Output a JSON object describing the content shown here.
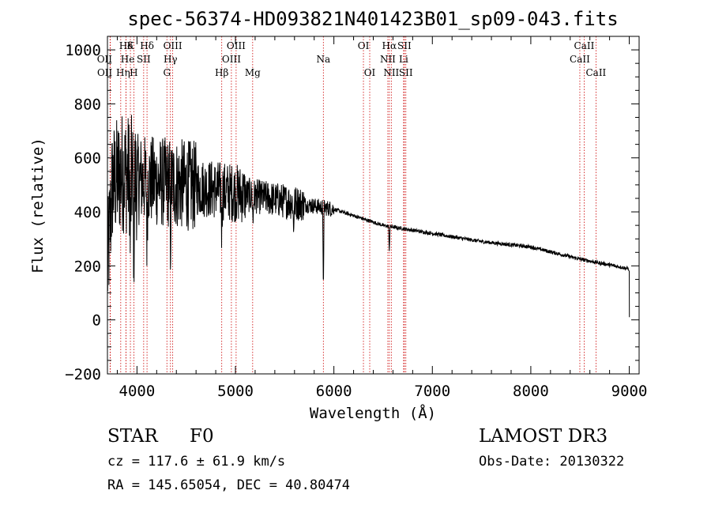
{
  "chart_data": {
    "type": "line",
    "title": "spec-56374-HD093821N401423B01_sp09-043.fits",
    "xlabel": "Wavelength (Å)",
    "ylabel": "Flux (relative)",
    "xlim": [
      3700,
      9100
    ],
    "ylim": [
      -200,
      1050
    ],
    "xticks": [
      4000,
      5000,
      6000,
      7000,
      8000,
      9000
    ],
    "yticks": [
      -200,
      0,
      200,
      400,
      600,
      800,
      1000
    ],
    "xtick_labels": [
      "4000",
      "5000",
      "6000",
      "7000",
      "8000",
      "9000"
    ],
    "ytick_labels": [
      "−200",
      "0",
      "200",
      "400",
      "600",
      "800",
      "1000"
    ],
    "series": [
      {
        "name": "flux",
        "continuum_points": [
          [
            3700,
            180
          ],
          [
            3750,
            500
          ],
          [
            3850,
            550
          ],
          [
            4000,
            520
          ],
          [
            4500,
            500
          ],
          [
            5000,
            470
          ],
          [
            5500,
            440
          ],
          [
            6000,
            410
          ],
          [
            6500,
            350
          ],
          [
            7000,
            320
          ],
          [
            7500,
            290
          ],
          [
            8000,
            270
          ],
          [
            8500,
            225
          ],
          [
            8990,
            190
          ]
        ],
        "absorption_features": [
          {
            "x": 3933,
            "depth": 300
          },
          {
            "x": 3968,
            "depth": 280
          },
          {
            "x": 4102,
            "depth": 240
          },
          {
            "x": 4340,
            "depth": 230
          },
          {
            "x": 4861,
            "depth": 160
          },
          {
            "x": 5178,
            "depth": 110
          },
          {
            "x": 5590,
            "depth": 110
          },
          {
            "x": 5893,
            "depth": 300
          },
          {
            "x": 6563,
            "depth": 90
          }
        ],
        "end_drop": [
          [
            9000,
            180
          ],
          [
            9001,
            10
          ]
        ]
      }
    ],
    "lines": [
      {
        "name": "Hδ",
        "x": 3889,
        "row": 0
      },
      {
        "name": "K",
        "x": 3933,
        "row": 0
      },
      {
        "name": "Hδ",
        "x": 4102,
        "row": 0
      },
      {
        "name": "OIII",
        "x": 4363,
        "row": 0
      },
      {
        "name": "OIII",
        "x": 5007,
        "row": 0
      },
      {
        "name": "OI",
        "x": 6300,
        "row": 0
      },
      {
        "name": "Hα",
        "x": 6563,
        "row": 0
      },
      {
        "name": "SII",
        "x": 6716,
        "row": 0
      },
      {
        "name": "CaII",
        "x": 8542,
        "row": 0
      },
      {
        "name": "OII",
        "x": 3727,
        "row": 1
      },
      {
        "name": "He",
        "x": 3889,
        "row": 1
      },
      {
        "name": "SII",
        "x": 4068,
        "row": 1
      },
      {
        "name": "Hγ",
        "x": 4340,
        "row": 1
      },
      {
        "name": "OIII",
        "x": 4959,
        "row": 1
      },
      {
        "name": "Na",
        "x": 5893,
        "row": 1
      },
      {
        "name": "NII",
        "x": 6548,
        "row": 1
      },
      {
        "name": "Li",
        "x": 6708,
        "row": 1
      },
      {
        "name": "CaII",
        "x": 8498,
        "row": 1
      },
      {
        "name": "OII",
        "x": 3729,
        "row": 2
      },
      {
        "name": "Hη",
        "x": 3835,
        "row": 2
      },
      {
        "name": "H",
        "x": 3968,
        "row": 2
      },
      {
        "name": "G",
        "x": 4304,
        "row": 2
      },
      {
        "name": "Hβ",
        "x": 4861,
        "row": 2
      },
      {
        "name": "Mg",
        "x": 5175,
        "row": 2
      },
      {
        "name": "OI",
        "x": 6364,
        "row": 2
      },
      {
        "name": "NII",
        "x": 6583,
        "row": 2
      },
      {
        "name": "SII",
        "x": 6731,
        "row": 2
      },
      {
        "name": "CaII",
        "x": 8662,
        "row": 2
      }
    ]
  },
  "info": {
    "object_type": "STAR",
    "subclass": "F0",
    "survey": "LAMOST DR3",
    "redshift": "cz = 117.6 ± 61.9 km/s",
    "obs_date": "Obs-Date: 20130322",
    "coords": "RA = 145.65054, DEC =  40.80474"
  },
  "colors": {
    "line_marker": "#cc0000",
    "spectrum": "#000000",
    "axes": "#000000"
  }
}
